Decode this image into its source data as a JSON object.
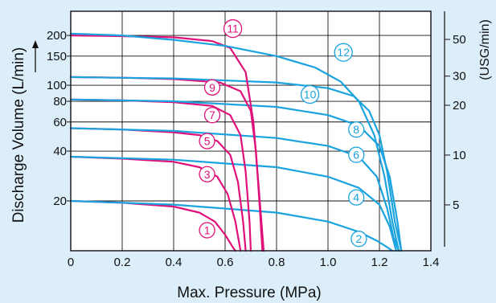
{
  "chart_data": {
    "type": "line",
    "xlabel": "Max. Pressure (MPa)",
    "ylabel": "Discharge Volume (L/min)",
    "y2label": "(USG/min)",
    "xlim": [
      0,
      1.4
    ],
    "ylim": [
      10,
      280
    ],
    "yscale": "log",
    "grid": true,
    "x_ticks": [
      {
        "value": 0,
        "label": "0"
      },
      {
        "value": 0.2,
        "label": "0.2"
      },
      {
        "value": 0.4,
        "label": "0.4"
      },
      {
        "value": 0.6,
        "label": "0.6"
      },
      {
        "value": 0.8,
        "label": "0.8"
      },
      {
        "value": 1.0,
        "label": "1.0"
      },
      {
        "value": 1.2,
        "label": "1.2"
      },
      {
        "value": 1.4,
        "label": "1.4"
      }
    ],
    "y_ticks": [
      {
        "value": 20,
        "label": "20"
      },
      {
        "value": 40,
        "label": "40"
      },
      {
        "value": 60,
        "label": "60"
      },
      {
        "value": 80,
        "label": "80"
      },
      {
        "value": 100,
        "label": "100"
      },
      {
        "value": 150,
        "label": "150"
      },
      {
        "value": 200,
        "label": "200"
      }
    ],
    "y2_ticks": [
      {
        "value": 5,
        "label": "5"
      },
      {
        "value": 10,
        "label": "10"
      },
      {
        "value": 20,
        "label": "20"
      },
      {
        "value": 30,
        "label": "30"
      },
      {
        "value": 50,
        "label": "50"
      }
    ],
    "colors": {
      "odd": "#e0107a",
      "even": "#1aa3de"
    },
    "series": [
      {
        "name": "1",
        "color": "#e0107a",
        "label_at": [
          0.53,
          13.3
        ],
        "x": [
          0,
          0.2,
          0.4,
          0.5,
          0.56,
          0.6,
          0.63,
          0.64
        ],
        "y": [
          20,
          19.5,
          18.5,
          17,
          15,
          12.5,
          10.5,
          10
        ]
      },
      {
        "name": "2",
        "color": "#1aa3de",
        "label_at": [
          1.12,
          11.8
        ],
        "x": [
          0,
          0.4,
          0.8,
          1.0,
          1.12,
          1.19,
          1.23,
          1.25
        ],
        "y": [
          20,
          19,
          17,
          15,
          13,
          11.5,
          10.5,
          10
        ]
      },
      {
        "name": "3",
        "color": "#e0107a",
        "label_at": [
          0.53,
          29
        ],
        "x": [
          0,
          0.2,
          0.4,
          0.5,
          0.57,
          0.61,
          0.64,
          0.66
        ],
        "y": [
          37,
          36,
          34.5,
          32,
          28,
          22,
          15,
          10
        ]
      },
      {
        "name": "4",
        "color": "#1aa3de",
        "label_at": [
          1.11,
          21
        ],
        "x": [
          0,
          0.4,
          0.8,
          1.0,
          1.12,
          1.2,
          1.24,
          1.265
        ],
        "y": [
          37,
          35.5,
          32,
          28,
          24,
          19,
          14,
          10
        ]
      },
      {
        "name": "5",
        "color": "#e0107a",
        "label_at": [
          0.53,
          46
        ],
        "x": [
          0,
          0.2,
          0.4,
          0.5,
          0.57,
          0.62,
          0.65,
          0.67,
          0.68
        ],
        "y": [
          55,
          54,
          52,
          50,
          46,
          38,
          26,
          15,
          10
        ]
      },
      {
        "name": "6",
        "color": "#1aa3de",
        "label_at": [
          1.11,
          38
        ],
        "x": [
          0,
          0.4,
          0.8,
          1.0,
          1.12,
          1.19,
          1.23,
          1.255,
          1.275
        ],
        "y": [
          55,
          53,
          48,
          43,
          37,
          28,
          18,
          12,
          10
        ]
      },
      {
        "name": "7",
        "color": "#e0107a",
        "label_at": [
          0.55,
          66
        ],
        "x": [
          0,
          0.2,
          0.4,
          0.55,
          0.62,
          0.66,
          0.68,
          0.695,
          0.7
        ],
        "y": [
          82,
          81,
          79,
          75,
          66,
          50,
          30,
          15,
          10
        ]
      },
      {
        "name": "8",
        "color": "#1aa3de",
        "label_at": [
          1.11,
          54
        ],
        "x": [
          0,
          0.4,
          0.8,
          1.0,
          1.12,
          1.2,
          1.24,
          1.27,
          1.285
        ],
        "y": [
          82,
          80,
          74,
          66,
          57,
          43,
          28,
          15,
          10
        ]
      },
      {
        "name": "9",
        "color": "#e0107a",
        "label_at": [
          0.55,
          97
        ],
        "x": [
          0,
          0.2,
          0.4,
          0.58,
          0.66,
          0.7,
          0.72,
          0.735,
          0.745
        ],
        "y": [
          112,
          111,
          109,
          104,
          92,
          70,
          40,
          18,
          10
        ]
      },
      {
        "name": "10",
        "color": "#1aa3de",
        "label_at": [
          0.93,
          88
        ],
        "x": [
          0,
          0.4,
          0.8,
          1.0,
          1.1,
          1.16,
          1.2,
          1.23,
          1.26,
          1.285
        ],
        "y": [
          112,
          110,
          104,
          96,
          86,
          70,
          50,
          30,
          15,
          10
        ]
      },
      {
        "name": "11",
        "color": "#e0107a",
        "label_at": [
          0.63,
          220
        ],
        "x": [
          0,
          0.2,
          0.4,
          0.55,
          0.62,
          0.68,
          0.71,
          0.73,
          0.75
        ],
        "y": [
          200,
          198,
          195,
          185,
          168,
          120,
          60,
          25,
          10
        ]
      },
      {
        "name": "12",
        "color": "#1aa3de",
        "label_at": [
          1.06,
          158
        ],
        "x": [
          0,
          0.2,
          0.4,
          0.6,
          0.8,
          0.95,
          1.05,
          1.12,
          1.18,
          1.22,
          1.25,
          1.275
        ],
        "y": [
          205,
          200,
          188,
          173,
          150,
          128,
          105,
          80,
          50,
          28,
          15,
          10
        ]
      }
    ]
  }
}
